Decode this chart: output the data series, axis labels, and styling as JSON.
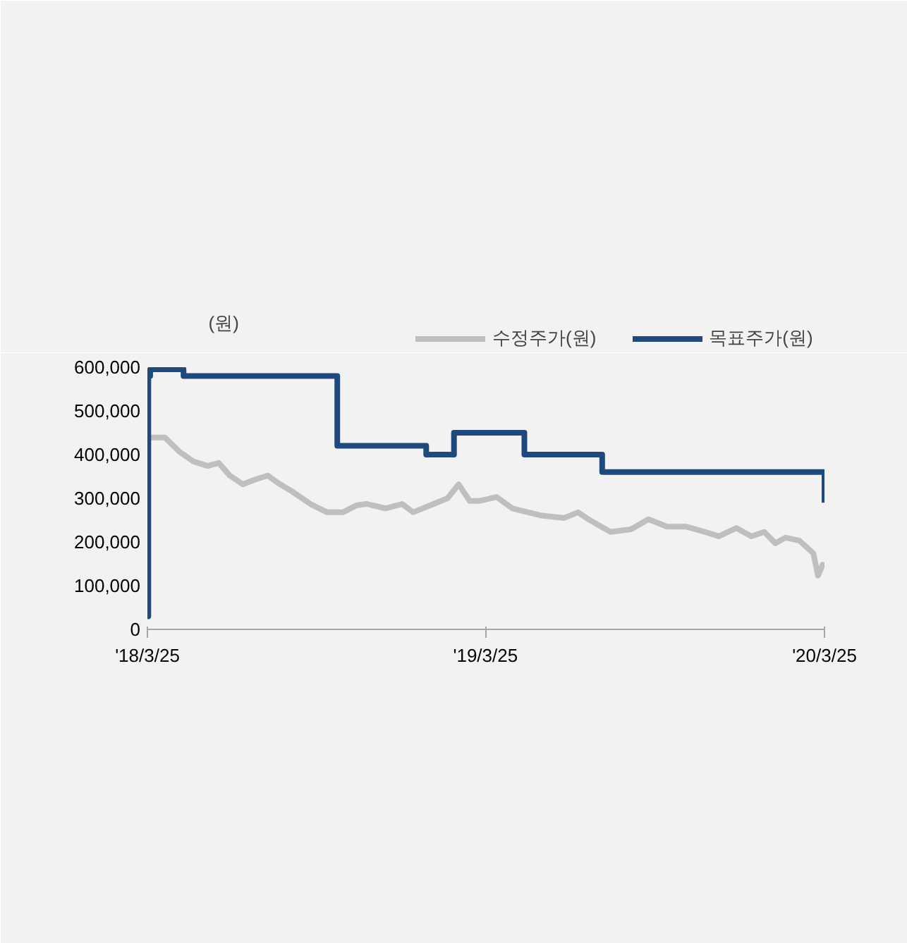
{
  "chart_data": {
    "type": "line",
    "ylabel": "(원)",
    "legend": "top",
    "grid": false,
    "xlim": [
      "2018-03-25",
      "2020-03-25"
    ],
    "ylim": [
      0,
      600000
    ],
    "xticks": [
      {
        "value": "2018-03-25",
        "label": "'18/3/25"
      },
      {
        "value": "2019-03-25",
        "label": "'19/3/25"
      },
      {
        "value": "2020-03-25",
        "label": "'20/3/25"
      }
    ],
    "yticks": [
      0,
      {
        "value": 100000,
        "label": "100,000"
      },
      {
        "value": 200000,
        "label": "200,000"
      },
      {
        "value": 300000,
        "label": "300,000"
      },
      {
        "value": 400000,
        "label": "400,000"
      },
      {
        "value": 500000,
        "label": "500,000"
      },
      {
        "value": 600000,
        "label": "600,000"
      }
    ],
    "series": [
      {
        "name": "수정주가(원)",
        "color": "#bfbfbf",
        "type": "line",
        "x": [
          "2018-03-26",
          "2018-04-13",
          "2018-04-29",
          "2018-05-14",
          "2018-05-29",
          "2018-06-10",
          "2018-06-22",
          "2018-07-06",
          "2018-07-18",
          "2018-08-02",
          "2018-08-13",
          "2018-08-28",
          "2018-09-17",
          "2018-10-05",
          "2018-10-22",
          "2018-11-06",
          "2018-11-17",
          "2018-12-07",
          "2018-12-25",
          "2019-01-06",
          "2019-01-28",
          "2019-02-12",
          "2019-02-24",
          "2019-03-08",
          "2019-03-19",
          "2019-04-06",
          "2019-04-23",
          "2019-05-23",
          "2019-06-18",
          "2019-07-03",
          "2019-07-14",
          "2019-08-07",
          "2019-08-29",
          "2019-09-17",
          "2019-10-07",
          "2019-10-28",
          "2019-11-17",
          "2019-12-02",
          "2019-12-21",
          "2020-01-06",
          "2020-01-20",
          "2020-02-01",
          "2020-02-12",
          "2020-02-27",
          "2020-03-13",
          "2020-03-18",
          "2020-03-23"
        ],
        "values": [
          439000,
          439000,
          406000,
          384000,
          374000,
          381000,
          352000,
          332000,
          342000,
          352000,
          335000,
          316000,
          287000,
          268000,
          268000,
          284000,
          287000,
          277000,
          287000,
          268000,
          287000,
          300000,
          332000,
          294000,
          294000,
          303000,
          277000,
          261000,
          255000,
          268000,
          252000,
          223000,
          229000,
          252000,
          235000,
          235000,
          223000,
          213000,
          232000,
          213000,
          223000,
          197000,
          210000,
          203000,
          174000,
          123000,
          148000
        ]
      },
      {
        "name": "목표주가(원)",
        "color": "#1f497d",
        "type": "step",
        "x": [
          "2018-03-25",
          "2018-03-26",
          "2018-03-28",
          "2018-05-03",
          "2018-10-16",
          "2019-01-20",
          "2019-02-19",
          "2019-05-06",
          "2019-07-29",
          "2020-03-25"
        ],
        "values": [
          30000,
          580000,
          595000,
          580000,
          420000,
          400000,
          450000,
          400000,
          360000,
          290000
        ]
      }
    ]
  }
}
